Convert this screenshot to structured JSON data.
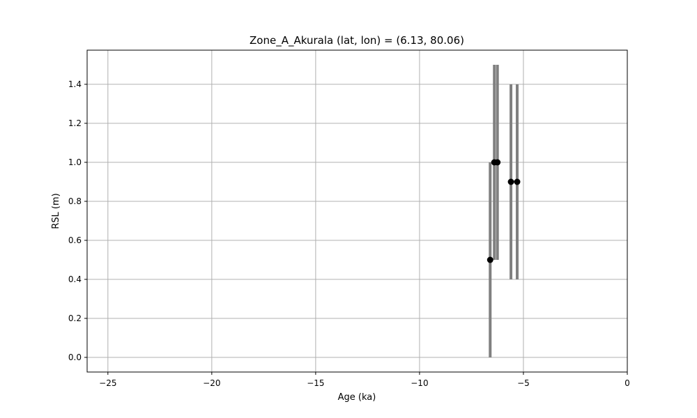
{
  "chart_data": {
    "type": "scatter",
    "title": "Zone_A_Akurala (lat, lon) = (6.13, 80.06)",
    "xlabel": "Age (ka)",
    "ylabel": "RSL (m)",
    "xlim": [
      -26,
      0
    ],
    "ylim": [
      -0.075,
      1.575
    ],
    "xticks": [
      -25,
      -20,
      -15,
      -10,
      -5,
      0
    ],
    "xtick_labels": [
      "−25",
      "−20",
      "−15",
      "−10",
      "−5",
      "0"
    ],
    "yticks": [
      0.0,
      0.2,
      0.4,
      0.6,
      0.8,
      1.0,
      1.2,
      1.4
    ],
    "ytick_labels": [
      "0.0",
      "0.2",
      "0.4",
      "0.6",
      "0.8",
      "1.0",
      "1.2",
      "1.4"
    ],
    "grid": true,
    "points": [
      {
        "x": -6.6,
        "y": 0.5,
        "ymin": 0.0,
        "ymax": 1.0
      },
      {
        "x": -6.4,
        "y": 1.0,
        "ymin": 0.5,
        "ymax": 1.5
      },
      {
        "x": -6.25,
        "y": 1.0,
        "ymin": 0.5,
        "ymax": 1.5
      },
      {
        "x": -5.6,
        "y": 0.9,
        "ymin": 0.4,
        "ymax": 1.4
      },
      {
        "x": -5.3,
        "y": 0.9,
        "ymin": 0.4,
        "ymax": 1.4
      }
    ],
    "colors": {
      "errorbar": "#808080",
      "marker": "#000000",
      "grid": "#b0b0b0"
    }
  }
}
